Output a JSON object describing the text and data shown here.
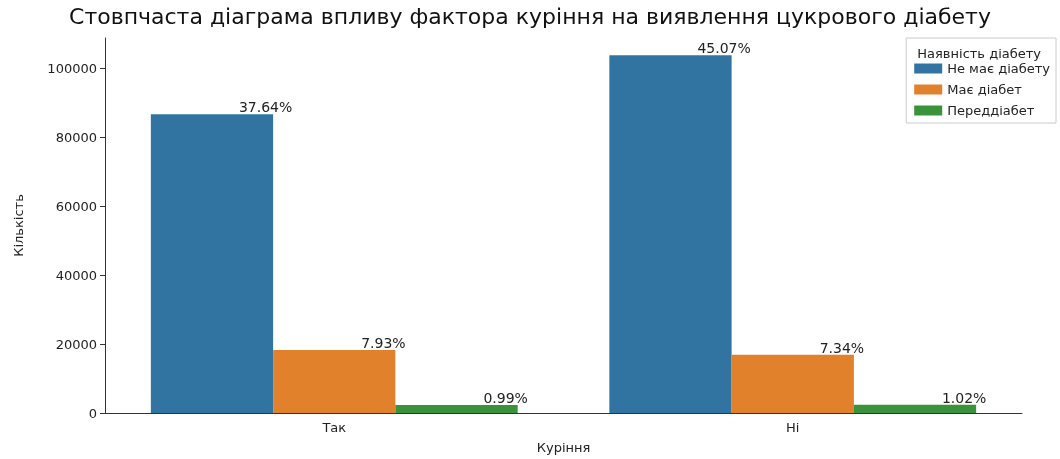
{
  "chart_data": {
    "type": "bar",
    "title": "Стовпчаста діаграма впливу фактора куріння на виявлення цукрового діабету",
    "xlabel": "Куріння",
    "ylabel": "Кількість",
    "legend_title": "Наявність діабету",
    "categories": [
      "Так",
      "Ні"
    ],
    "series": [
      {
        "name": "Не має діабету",
        "color": "#3274a1",
        "values": [
          86700,
          103800
        ]
      },
      {
        "name": "Має діабет",
        "color": "#e1812c",
        "values": [
          18300,
          16900
        ]
      },
      {
        "name": "Переддіабет",
        "color": "#3a923a",
        "values": [
          2300,
          2400
        ]
      }
    ],
    "annotations": [
      {
        "text": "37.64%",
        "y": 86700
      },
      {
        "text": "7.93%",
        "y": 18300
      },
      {
        "text": "0.99%",
        "y": 2300
      },
      {
        "text": "45.07%",
        "y": 103800
      },
      {
        "text": "7.34%",
        "y": 16900
      },
      {
        "text": "1.02%",
        "y": 2400
      }
    ],
    "ylim": [
      0,
      108800
    ],
    "yticks": [
      0,
      20000,
      40000,
      60000,
      80000,
      100000
    ],
    "grid": false,
    "legend": "top right"
  }
}
